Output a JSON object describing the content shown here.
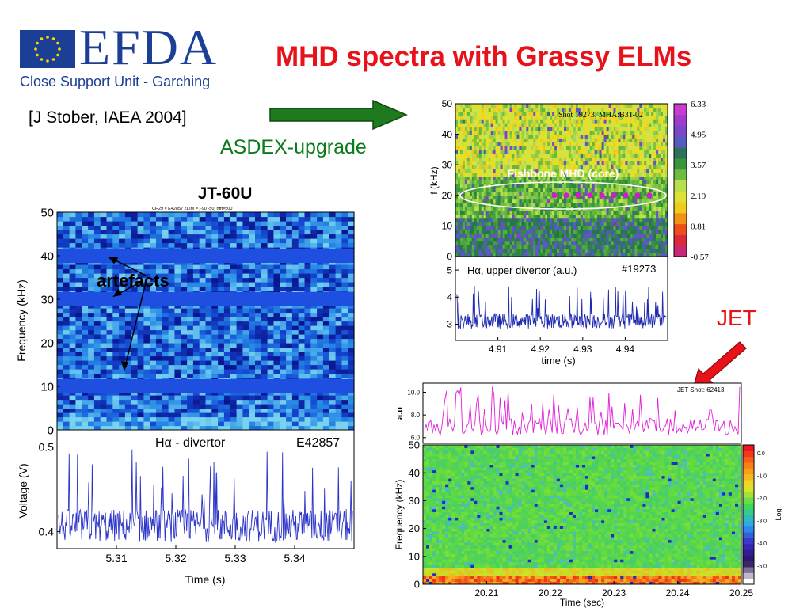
{
  "header": {
    "logo_text": "EFDA",
    "logo_subtitle": "Close Support Unit - Garching",
    "title": "MHD spectra with Grassy ELMs",
    "citation": "[J Stober, IAEA 2004]"
  },
  "labels": {
    "asdex": "ASDEX-upgrade",
    "jet": "JET"
  },
  "colors": {
    "title_red": "#e8121b",
    "asdex_green": "#0b7a1b",
    "efda_blue": "#1b3f94",
    "arrow_green": "#1f7a1f",
    "arrow_red": "#e8121b"
  },
  "icons": [
    "eu-flag-icon",
    "green-arrow-icon",
    "red-arrow-icon"
  ],
  "chart_data": [
    {
      "id": "jt60u",
      "type": "heatmap",
      "title": "JT-60U",
      "subtitle": "CH29  # E42857     ZLIM = [-90 -50]   nfft=500",
      "ylabel": "Frequency (kHz)",
      "yticks": [
        0,
        10,
        20,
        30,
        40,
        50
      ],
      "ylim": [
        0,
        50
      ],
      "artefact_bands_khz": [
        10,
        30,
        40
      ],
      "annotation": "artefacts",
      "trace": {
        "type": "line",
        "label": "Hα - divertor",
        "shot": "E42857",
        "xlabel": "Time (s)",
        "ylabel": "Voltage (V)",
        "xlim": [
          5.3,
          5.35
        ],
        "xticks": [
          "5.31",
          "5.32",
          "5.33",
          "5.34"
        ],
        "ylim": [
          0.38,
          0.52
        ],
        "yticks": [
          "0.4",
          "0.5"
        ]
      }
    },
    {
      "id": "asdex",
      "type": "heatmap",
      "header_text": "Shot 19273, MHA:B31-02",
      "ylabel": "f (kHz)",
      "yticks": [
        0,
        10,
        20,
        30,
        40,
        50
      ],
      "ylim": [
        0,
        50
      ],
      "annotation": "Fishbone MHD (core)",
      "annotation_freq_khz": 20,
      "colorbar": [
        "6.33",
        "4.95",
        "3.57",
        "2.19",
        "0.81",
        "-0.57"
      ],
      "trace": {
        "type": "line",
        "label": "Hα, upper divertor (a.u.)",
        "shot": "#19273",
        "xlabel": "time (s)",
        "xlim": [
          4.9,
          4.95
        ],
        "xticks": [
          "4.91",
          "4.92",
          "4.93",
          "4.94"
        ],
        "ylim": [
          2.4,
          5.5
        ],
        "yticks": [
          "3",
          "4",
          "5"
        ]
      }
    },
    {
      "id": "jet",
      "type": "heatmap",
      "header_text": "JET Shot: 62413",
      "ylabel": "Frequency (kHz)",
      "yticks": [
        0,
        10,
        20,
        30,
        40,
        50
      ],
      "ylim": [
        0,
        50
      ],
      "xlabel": "Time (sec)",
      "xlim": [
        20.2,
        20.25
      ],
      "xticks": [
        "20.21",
        "20.22",
        "20.23",
        "20.24",
        "20.25"
      ],
      "colorbar": [
        "0.0",
        "-1.0",
        "-2.0",
        "-3.0",
        "-4.0",
        "-5.0"
      ],
      "colorbar_label": "Log",
      "trace": {
        "type": "line",
        "ylabel": "a.u",
        "ylim": [
          5.5,
          10.8
        ],
        "yticks": [
          "10.0",
          "8.0",
          "6.0"
        ]
      }
    }
  ]
}
